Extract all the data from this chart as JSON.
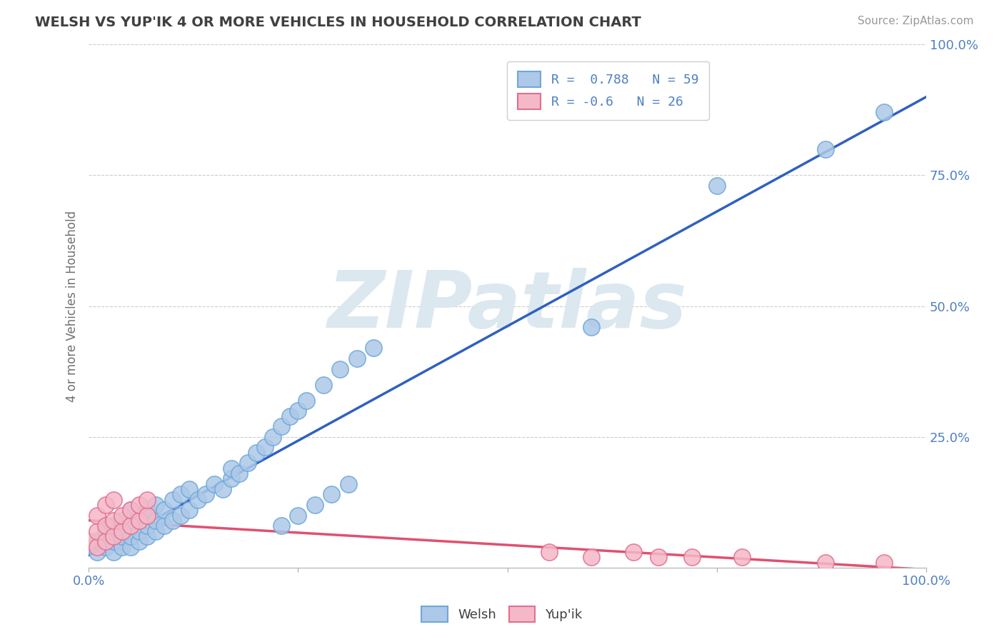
{
  "title": "WELSH VS YUP'IK 4 OR MORE VEHICLES IN HOUSEHOLD CORRELATION CHART",
  "source_text": "Source: ZipAtlas.com",
  "ylabel": "4 or more Vehicles in Household",
  "xlim": [
    0.0,
    1.0
  ],
  "ylim": [
    0.0,
    1.0
  ],
  "xticklabels_left": "0.0%",
  "xticklabels_right": "100.0%",
  "ytick_labels": [
    "25.0%",
    "50.0%",
    "75.0%",
    "100.0%"
  ],
  "ytick_values": [
    0.25,
    0.5,
    0.75,
    1.0
  ],
  "welsh_color": "#adc8e8",
  "welsh_edge_color": "#6fa8d8",
  "yupik_color": "#f5b8c8",
  "yupik_edge_color": "#e07090",
  "welsh_R": 0.788,
  "welsh_N": 59,
  "yupik_R": -0.6,
  "yupik_N": 26,
  "welsh_line_color": "#3060c0",
  "yupik_line_color": "#e05070",
  "watermark_text": "ZIPatlas",
  "watermark_color": "#dce8f0",
  "background_color": "#ffffff",
  "grid_color": "#cccccc",
  "title_color": "#404040",
  "tick_color": "#5080c0",
  "welsh_x": [
    0.01,
    0.01,
    0.02,
    0.02,
    0.03,
    0.03,
    0.03,
    0.04,
    0.04,
    0.04,
    0.05,
    0.05,
    0.05,
    0.05,
    0.06,
    0.06,
    0.06,
    0.07,
    0.07,
    0.07,
    0.08,
    0.08,
    0.08,
    0.09,
    0.09,
    0.1,
    0.1,
    0.11,
    0.11,
    0.12,
    0.12,
    0.13,
    0.14,
    0.15,
    0.16,
    0.17,
    0.17,
    0.18,
    0.19,
    0.2,
    0.21,
    0.22,
    0.23,
    0.24,
    0.25,
    0.26,
    0.28,
    0.3,
    0.32,
    0.34,
    0.23,
    0.25,
    0.27,
    0.29,
    0.31,
    0.6,
    0.75,
    0.88,
    0.95
  ],
  "welsh_y": [
    0.03,
    0.05,
    0.04,
    0.07,
    0.03,
    0.05,
    0.08,
    0.04,
    0.06,
    0.09,
    0.04,
    0.06,
    0.08,
    0.11,
    0.05,
    0.07,
    0.1,
    0.06,
    0.08,
    0.11,
    0.07,
    0.09,
    0.12,
    0.08,
    0.11,
    0.09,
    0.13,
    0.1,
    0.14,
    0.11,
    0.15,
    0.13,
    0.14,
    0.16,
    0.15,
    0.17,
    0.19,
    0.18,
    0.2,
    0.22,
    0.23,
    0.25,
    0.27,
    0.29,
    0.3,
    0.32,
    0.35,
    0.38,
    0.4,
    0.42,
    0.08,
    0.1,
    0.12,
    0.14,
    0.16,
    0.46,
    0.73,
    0.8,
    0.87
  ],
  "yupik_x": [
    0.0,
    0.01,
    0.01,
    0.01,
    0.02,
    0.02,
    0.02,
    0.03,
    0.03,
    0.03,
    0.04,
    0.04,
    0.05,
    0.05,
    0.06,
    0.06,
    0.07,
    0.07,
    0.55,
    0.6,
    0.65,
    0.68,
    0.72,
    0.78,
    0.88,
    0.95
  ],
  "yupik_y": [
    0.05,
    0.04,
    0.07,
    0.1,
    0.05,
    0.08,
    0.12,
    0.06,
    0.09,
    0.13,
    0.07,
    0.1,
    0.08,
    0.11,
    0.09,
    0.12,
    0.1,
    0.13,
    0.03,
    0.02,
    0.03,
    0.02,
    0.02,
    0.02,
    0.01,
    0.01
  ],
  "welsh_line_x": [
    0.0,
    1.0
  ],
  "welsh_line_y": [
    -0.02,
    1.0
  ],
  "yupik_line_x": [
    0.0,
    1.0
  ],
  "yupik_line_y": [
    0.08,
    -0.02
  ]
}
